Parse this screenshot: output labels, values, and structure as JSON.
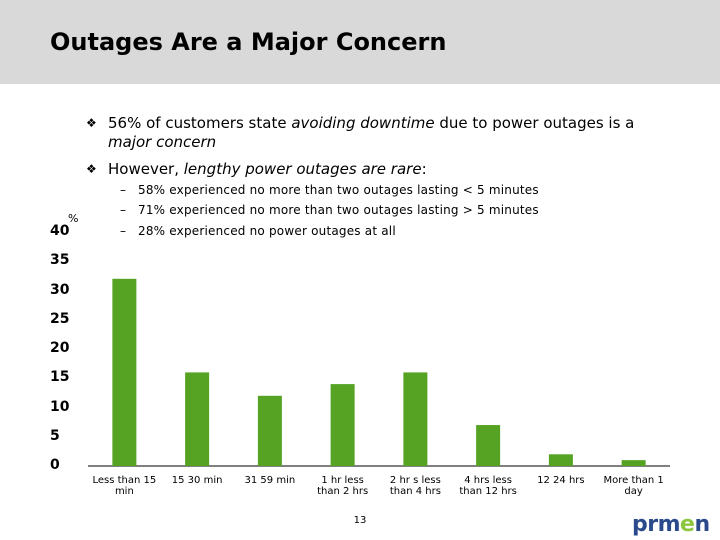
{
  "slide": {
    "title": "Outages Are a Major Concern",
    "page_number": "13",
    "logo_prefix": "prm",
    "logo_accent": "e",
    "logo_suffix": "n"
  },
  "bullets": [
    {
      "mark": "❖",
      "pre": "56% of customers state ",
      "em": "avoiding downtime",
      "post": " due to power outages is a",
      "line2": "major concern"
    },
    {
      "mark": "❖",
      "pre": "However, ",
      "em": "lengthy power outages are rare",
      "post": ":"
    }
  ],
  "subbullets": [
    "58% experienced no more than two outages lasting < 5 minutes",
    "71% experienced no more than two outages lasting > 5 minutes",
    "28% experienced no power outages at all"
  ],
  "chart_data": {
    "type": "bar",
    "ylabel": "%",
    "ylim": [
      0,
      40
    ],
    "yticks": [
      "0",
      "5",
      "10",
      "15",
      "20",
      "25",
      "30",
      "35",
      "40"
    ],
    "categories": [
      [
        "Less than 15",
        "min"
      ],
      [
        "15   30 min"
      ],
      [
        "31   59 min"
      ],
      [
        "1 hr   less",
        "than 2 hrs"
      ],
      [
        "2 hr s  less",
        "than 4 hrs"
      ],
      [
        "4 hrs   less",
        "than 12 hrs"
      ],
      [
        "12 24 hrs"
      ],
      [
        "More than 1",
        "day"
      ]
    ],
    "values": [
      32,
      16,
      12,
      14,
      16,
      7,
      2,
      1
    ],
    "bar_color": "#56a324"
  }
}
